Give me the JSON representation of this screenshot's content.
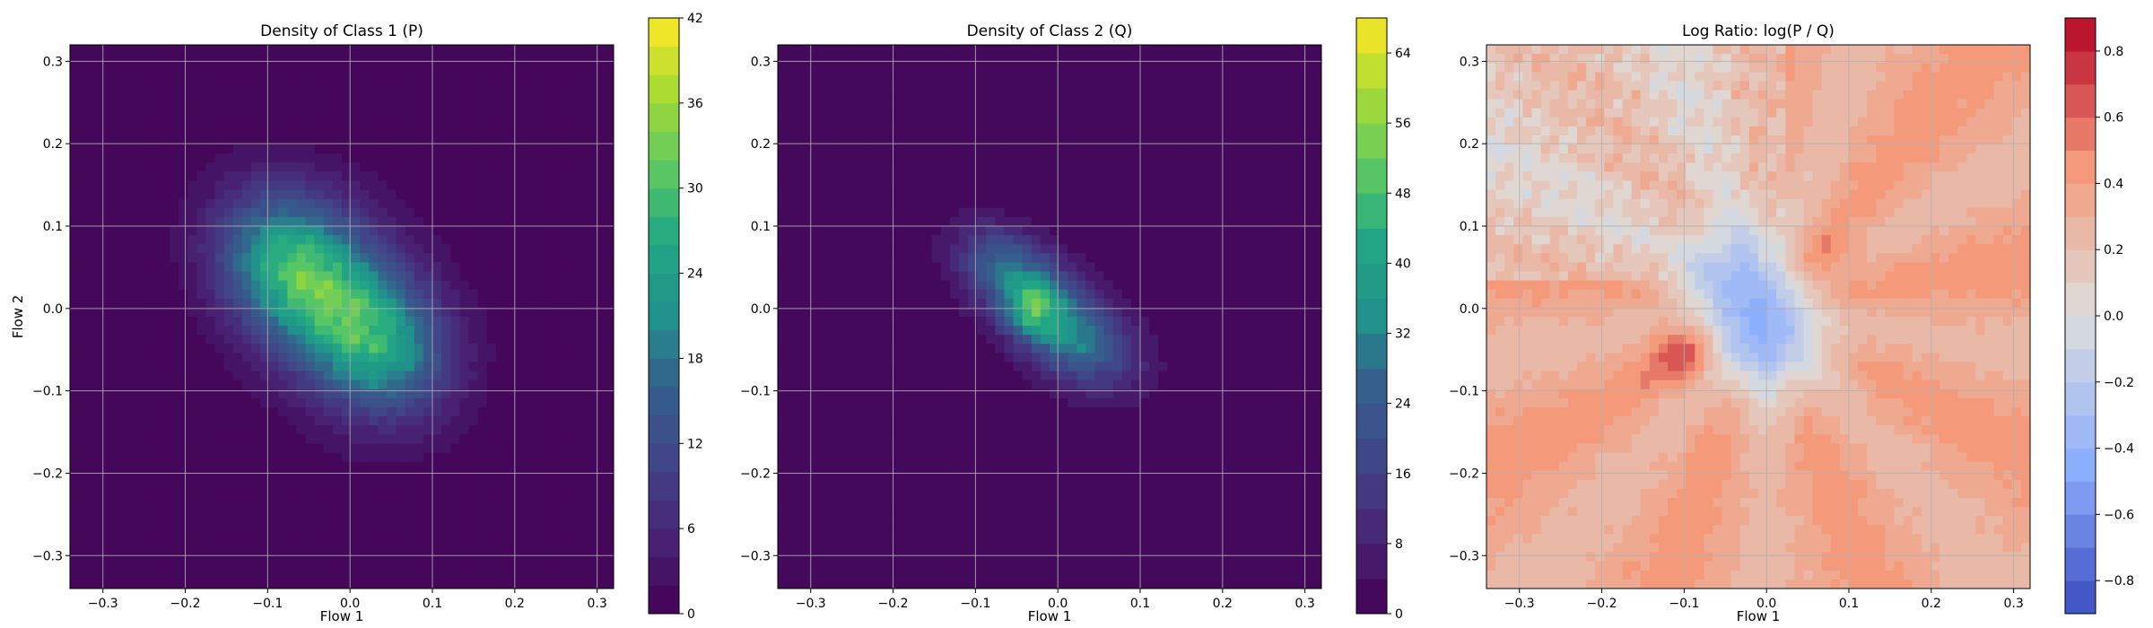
{
  "chart_data": [
    {
      "type": "heatmap",
      "title": "Density of Class 1 (P)",
      "xlabel": "Flow 1",
      "ylabel": "Flow 2",
      "xlim": [
        -0.34,
        0.32
      ],
      "ylim": [
        -0.34,
        0.32
      ],
      "xticks": [
        -0.3,
        -0.2,
        -0.1,
        0.0,
        0.1,
        0.2,
        0.3
      ],
      "yticks": [
        -0.3,
        -0.2,
        -0.1,
        0.0,
        0.1,
        0.2,
        0.3
      ],
      "xtick_labels": [
        "−0.3",
        "−0.2",
        "−0.1",
        "0.0",
        "0.1",
        "0.2",
        "0.3"
      ],
      "ytick_labels": [
        "−0.3",
        "−0.2",
        "−0.1",
        "0.0",
        "0.1",
        "0.2",
        "0.3"
      ],
      "grid": true,
      "colormap": "viridis",
      "colorbar": {
        "min": 0,
        "max": 42,
        "levels": 21,
        "ticks": [
          0,
          6,
          12,
          18,
          24,
          30,
          36,
          42
        ],
        "tick_labels": [
          "0",
          "6",
          "12",
          "18",
          "24",
          "30",
          "36",
          "42"
        ]
      },
      "density": {
        "components": [
          {
            "cx": -0.07,
            "cy": 0.05,
            "sx": 0.06,
            "sy": 0.06,
            "rho": -0.2,
            "w": 22
          },
          {
            "cx": 0.03,
            "cy": -0.04,
            "sx": 0.06,
            "sy": 0.06,
            "rho": -0.2,
            "w": 20
          },
          {
            "cx": -0.02,
            "cy": 0.01,
            "sx": 0.09,
            "sy": 0.1,
            "rho": -0.3,
            "w": 8
          }
        ],
        "cutoff": 1.5
      }
    },
    {
      "type": "heatmap",
      "title": "Density of Class 2 (Q)",
      "xlabel": "Flow 1",
      "ylabel": "",
      "xlim": [
        -0.34,
        0.32
      ],
      "ylim": [
        -0.34,
        0.32
      ],
      "xticks": [
        -0.3,
        -0.2,
        -0.1,
        0.0,
        0.1,
        0.2,
        0.3
      ],
      "yticks": [
        -0.3,
        -0.2,
        -0.1,
        0.0,
        0.1,
        0.2,
        0.3
      ],
      "xtick_labels": [
        "−0.3",
        "−0.2",
        "−0.1",
        "0.0",
        "0.1",
        "0.2",
        "0.3"
      ],
      "ytick_labels": [
        "−0.3",
        "−0.2",
        "−0.1",
        "0.0",
        "0.1",
        "0.2",
        "0.3"
      ],
      "grid": true,
      "colormap": "viridis",
      "colorbar": {
        "min": 0,
        "max": 68,
        "levels": 17,
        "ticks": [
          0,
          8,
          16,
          24,
          32,
          40,
          48,
          56,
          64
        ],
        "tick_labels": [
          "0",
          "8",
          "16",
          "24",
          "32",
          "40",
          "48",
          "56",
          "64"
        ]
      },
      "density": {
        "components": [
          {
            "cx": -0.03,
            "cy": 0.0,
            "sx": 0.025,
            "sy": 0.025,
            "rho": 0.0,
            "w": 25
          },
          {
            "cx": -0.06,
            "cy": 0.05,
            "sx": 0.04,
            "sy": 0.035,
            "rho": -0.3,
            "w": 20
          },
          {
            "cx": 0.02,
            "cy": -0.04,
            "sx": 0.045,
            "sy": 0.04,
            "rho": -0.3,
            "w": 22
          },
          {
            "cx": -0.01,
            "cy": 0.0,
            "sx": 0.08,
            "sy": 0.06,
            "rho": -0.65,
            "w": 12
          }
        ],
        "cutoff": 1.5
      }
    },
    {
      "type": "heatmap",
      "title": "Log Ratio: log(P / Q)",
      "xlabel": "Flow 1",
      "ylabel": "",
      "xlim": [
        -0.34,
        0.32
      ],
      "ylim": [
        -0.34,
        0.32
      ],
      "xticks": [
        -0.3,
        -0.2,
        -0.1,
        0.0,
        0.1,
        0.2,
        0.3
      ],
      "yticks": [
        -0.3,
        -0.2,
        -0.1,
        0.0,
        0.1,
        0.2,
        0.3
      ],
      "xtick_labels": [
        "−0.3",
        "−0.2",
        "−0.1",
        "0.0",
        "0.1",
        "0.2",
        "0.3"
      ],
      "ytick_labels": [
        "−0.3",
        "−0.2",
        "−0.1",
        "0.0",
        "0.1",
        "0.2",
        "0.3"
      ],
      "grid": true,
      "colormap": "coolwarm",
      "colorbar": {
        "min": -0.9,
        "max": 0.9,
        "levels": 18,
        "ticks": [
          -0.8,
          -0.6,
          -0.4,
          -0.2,
          0.0,
          0.2,
          0.4,
          0.6,
          0.8
        ],
        "tick_labels": [
          "−0.8",
          "−0.6",
          "−0.4",
          "−0.2",
          "0.0",
          "0.2",
          "0.4",
          "0.6",
          "0.8"
        ]
      },
      "field": {
        "base": 0.35,
        "bumps": [
          {
            "cx": -0.04,
            "cy": 0.05,
            "s": 0.06,
            "a": -0.55
          },
          {
            "cx": 0.0,
            "cy": -0.04,
            "s": 0.05,
            "a": -0.6
          },
          {
            "cx": -0.1,
            "cy": -0.05,
            "s": 0.03,
            "a": 0.4
          },
          {
            "cx": 0.06,
            "cy": 0.06,
            "s": 0.03,
            "a": 0.25
          }
        ],
        "upper_left_band": {
          "value": 0.15
        }
      }
    }
  ]
}
